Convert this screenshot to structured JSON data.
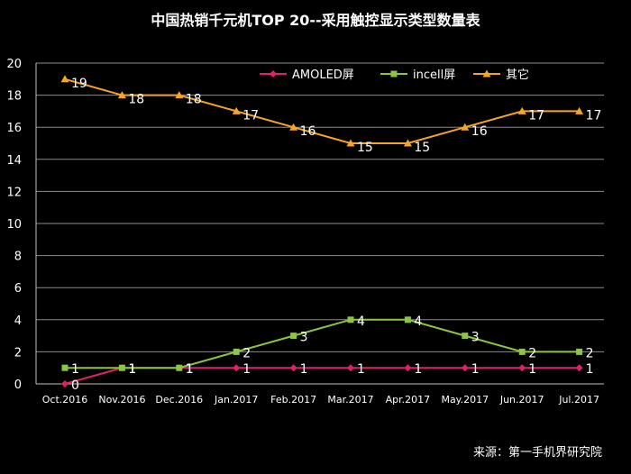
{
  "chart_data": {
    "type": "line",
    "title": "中国热销千元机TOP 20--采用触控显示类型数量表",
    "categories": [
      "Oct.2016",
      "Nov.2016",
      "Dec.2016",
      "Jan.2017",
      "Feb.2017",
      "Mar.2017",
      "Apr.2017",
      "May.2017",
      "Jun.2017",
      "Jul.2017"
    ],
    "ylim": [
      0,
      20
    ],
    "yticks": [
      "0",
      "2",
      "4",
      "6",
      "8",
      "10",
      "12",
      "14",
      "16",
      "18",
      "20"
    ],
    "grid": true,
    "legend_position": "top",
    "series": [
      {
        "name": "AMOLED屏",
        "values": [
          0,
          1,
          1,
          1,
          1,
          1,
          1,
          1,
          1,
          1
        ],
        "color": "#e0206a",
        "marker": "diamond"
      },
      {
        "name": "incell屏",
        "values": [
          1,
          1,
          1,
          2,
          3,
          4,
          4,
          3,
          2,
          2
        ],
        "color": "#8cc63f",
        "marker": "square"
      },
      {
        "name": "其它",
        "values": [
          19,
          18,
          18,
          17,
          16,
          15,
          15,
          16,
          17,
          17
        ],
        "color": "#f5a623",
        "marker": "triangle"
      }
    ],
    "data_labels": [
      [
        "0",
        "1",
        "1",
        "1",
        "1",
        "1",
        "1",
        "1",
        "1",
        "1"
      ],
      [
        "1",
        "1",
        "1",
        "2",
        "3",
        "4",
        "4",
        "3",
        "2",
        "2"
      ],
      [
        "19",
        "18",
        "18",
        "17",
        "16",
        "15",
        "15",
        "16",
        "17",
        "17"
      ]
    ],
    "source": "来源：第一手机界研究院"
  }
}
